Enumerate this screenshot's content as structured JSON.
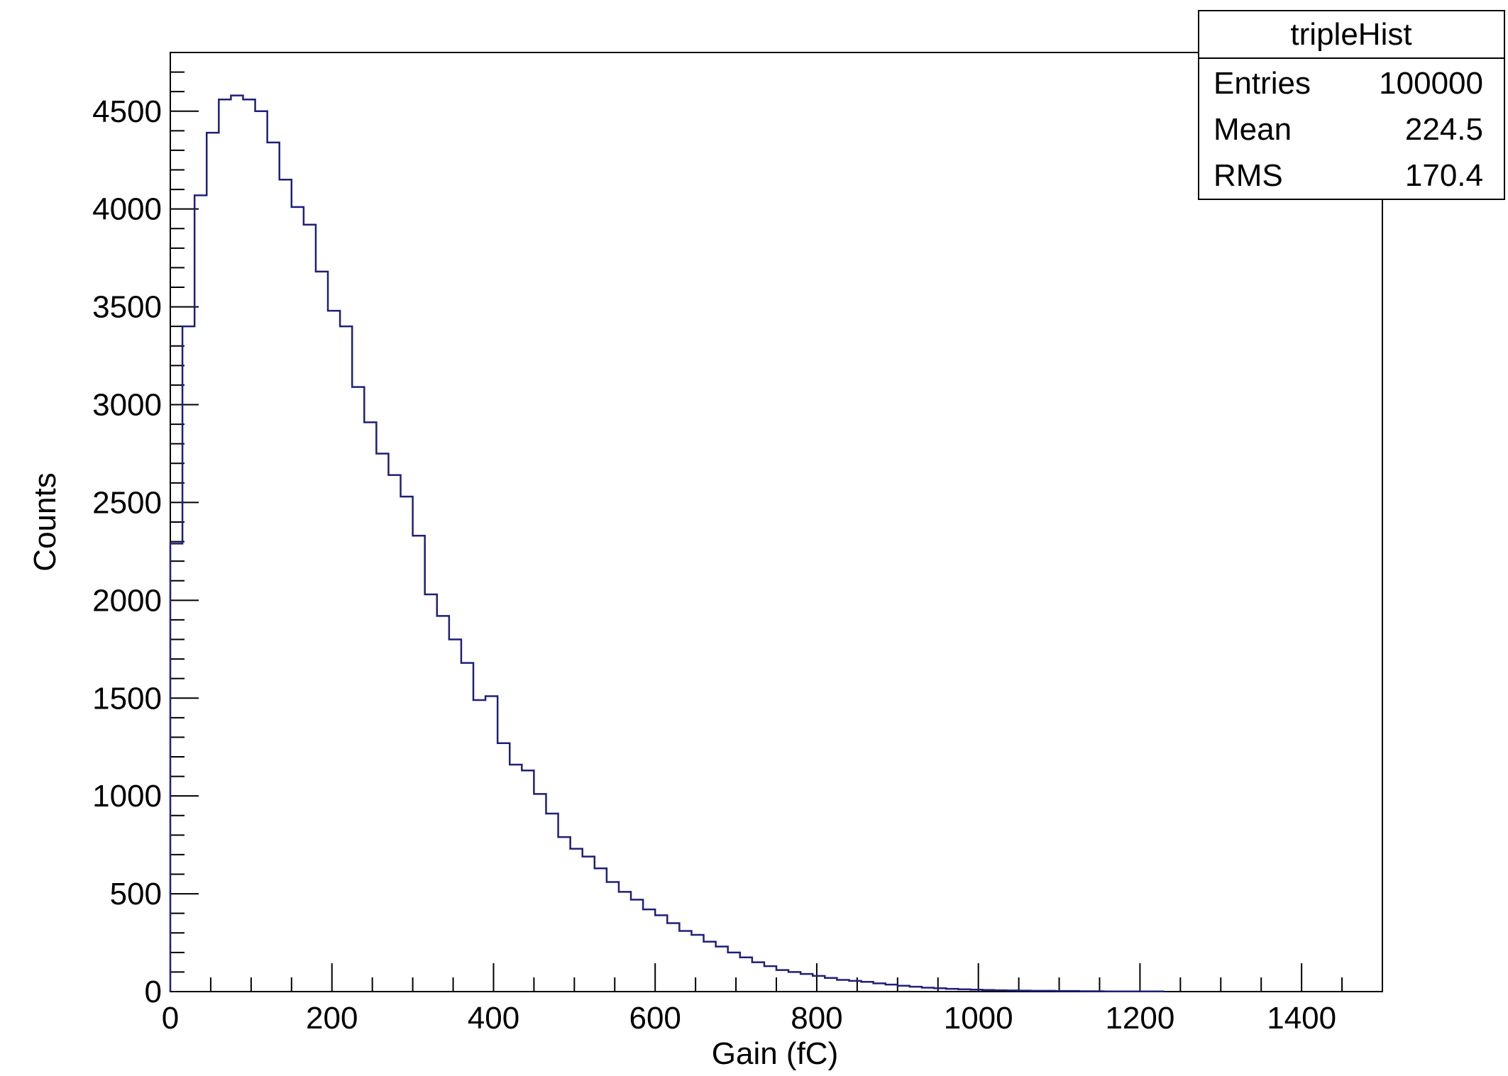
{
  "chart_data": {
    "type": "histogram",
    "title": "",
    "xlabel": "Gain (fC)",
    "ylabel": "Counts",
    "xlim": [
      0,
      1500
    ],
    "ylim": [
      0,
      4800
    ],
    "x_ticks": [
      "0",
      "200",
      "400",
      "600",
      "800",
      "1000",
      "1200",
      "1400"
    ],
    "y_ticks": [
      "0",
      "500",
      "1000",
      "1500",
      "2000",
      "2500",
      "3000",
      "3500",
      "4000",
      "4500"
    ],
    "bin_width": 15,
    "bin_start": 0,
    "line_color": "#1f1f7a",
    "grid": false,
    "stats_box": {
      "name": "tripleHist",
      "rows": [
        {
          "label": "Entries",
          "value": "100000"
        },
        {
          "label": "Mean",
          "value": "224.5"
        },
        {
          "label": "RMS",
          "value": "170.4"
        }
      ],
      "placement": "top-right"
    },
    "counts": [
      2290,
      3400,
      4070,
      4390,
      4560,
      4580,
      4560,
      4500,
      4340,
      4150,
      4010,
      3920,
      3680,
      3480,
      3400,
      3090,
      2910,
      2750,
      2640,
      2530,
      2330,
      2030,
      1920,
      1800,
      1680,
      1490,
      1510,
      1270,
      1160,
      1130,
      1010,
      910,
      790,
      730,
      690,
      630,
      560,
      510,
      470,
      420,
      390,
      350,
      310,
      290,
      255,
      230,
      200,
      175,
      150,
      130,
      110,
      100,
      90,
      80,
      70,
      60,
      55,
      50,
      42,
      36,
      30,
      25,
      20,
      17,
      14,
      12,
      10,
      8,
      7,
      6,
      5,
      4,
      4,
      3,
      3,
      2,
      2,
      1,
      1,
      1,
      1,
      1
    ]
  }
}
